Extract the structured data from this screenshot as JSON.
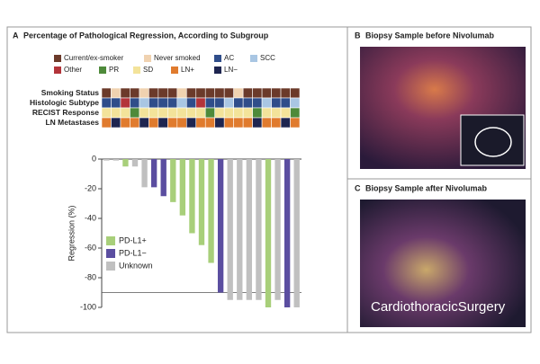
{
  "chart_data": {
    "type": "bar",
    "panel_letter": "A",
    "title": "Percentage of Pathological Regression, According to Subgroup",
    "subgroup_legend": [
      {
        "name": "Current/ex-smoker",
        "color": "#6b3a2a"
      },
      {
        "name": "Never smoked",
        "color": "#f0d2b0"
      },
      {
        "name": "AC",
        "color": "#2f4d8a"
      },
      {
        "name": "SCC",
        "color": "#a9c6e3"
      },
      {
        "name": "Other",
        "color": "#b3343a"
      },
      {
        "name": "PR",
        "color": "#4e8a3a"
      },
      {
        "name": "SD",
        "color": "#f3e39a"
      },
      {
        "name": "LN+",
        "color": "#e07b2e"
      },
      {
        "name": "LN−",
        "color": "#1e2550"
      }
    ],
    "heatmap": [
      {
        "label": "Smoking Status",
        "cells": [
          "#6b3a2a",
          "#f0d2b0",
          "#6b3a2a",
          "#6b3a2a",
          "#f0d2b0",
          "#6b3a2a",
          "#6b3a2a",
          "#6b3a2a",
          "#f0d2b0",
          "#6b3a2a",
          "#6b3a2a",
          "#6b3a2a",
          "#6b3a2a",
          "#6b3a2a",
          "#f0d2b0",
          "#6b3a2a",
          "#6b3a2a",
          "#6b3a2a",
          "#6b3a2a",
          "#6b3a2a",
          "#6b3a2a"
        ]
      },
      {
        "label": "Histologic Subtype",
        "cells": [
          "#2f4d8a",
          "#2f4d8a",
          "#b3343a",
          "#2f4d8a",
          "#a9c6e3",
          "#2f4d8a",
          "#2f4d8a",
          "#2f4d8a",
          "#a9c6e3",
          "#2f4d8a",
          "#b3343a",
          "#2f4d8a",
          "#2f4d8a",
          "#a9c6e3",
          "#2f4d8a",
          "#2f4d8a",
          "#2f4d8a",
          "#a9c6e3",
          "#2f4d8a",
          "#2f4d8a",
          "#a9c6e3"
        ]
      },
      {
        "label": "RECIST Response",
        "cells": [
          "#f3e39a",
          "#f3e39a",
          "#f3e39a",
          "#4e8a3a",
          "#f3e39a",
          "#f3e39a",
          "#f3e39a",
          "#f3e39a",
          "#f3e39a",
          "#f3e39a",
          "#f3e39a",
          "#4e8a3a",
          "#f3e39a",
          "#f3e39a",
          "#f3e39a",
          "#f3e39a",
          "#4e8a3a",
          "#f3e39a",
          "#f3e39a",
          "#f3e39a",
          "#4e8a3a"
        ]
      },
      {
        "label": "LN Metastases",
        "cells": [
          "#e07b2e",
          "#1e2550",
          "#e07b2e",
          "#e07b2e",
          "#1e2550",
          "#e07b2e",
          "#1e2550",
          "#e07b2e",
          "#e07b2e",
          "#1e2550",
          "#e07b2e",
          "#e07b2e",
          "#1e2550",
          "#e07b2e",
          "#e07b2e",
          "#e07b2e",
          "#1e2550",
          "#e07b2e",
          "#e07b2e",
          "#1e2550",
          "#e07b2e"
        ]
      }
    ],
    "y_label": "Regression (%)",
    "ylim": [
      -100,
      0
    ],
    "yticks": [
      0,
      -20,
      -40,
      -60,
      -80,
      -100
    ],
    "reference_line": -90,
    "series": [
      {
        "name": "PD-L1+",
        "color": "#a8cf7a",
        "values": [
          null,
          null,
          -5,
          null,
          null,
          null,
          null,
          -29,
          -38,
          -50,
          -58,
          -70,
          null,
          null,
          null,
          null,
          null,
          -100,
          null,
          null,
          null
        ]
      },
      {
        "name": "PD-L1−",
        "color": "#5b4ea0",
        "values": [
          null,
          null,
          null,
          null,
          null,
          -19,
          -25,
          null,
          null,
          null,
          null,
          null,
          -90,
          null,
          null,
          null,
          null,
          null,
          null,
          -100,
          null
        ]
      },
      {
        "name": "Unknown",
        "color": "#c0c0c0",
        "values": [
          -1,
          -1,
          null,
          -5,
          -19,
          null,
          null,
          null,
          null,
          null,
          null,
          null,
          null,
          -95,
          -95,
          -95,
          -95,
          null,
          -95,
          null,
          -100
        ]
      }
    ]
  },
  "panels": [
    {
      "letter": "B",
      "title": "Biopsy Sample before Nivolumab"
    },
    {
      "letter": "C",
      "title": "Biopsy Sample after Nivolumab"
    }
  ],
  "watermark": "CardiothoracicSurgery"
}
